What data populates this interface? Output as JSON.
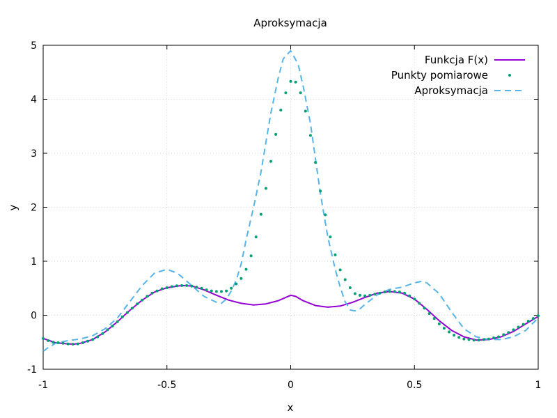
{
  "chart_data": {
    "type": "line",
    "title": "Aproksymacja",
    "xlabel": "x",
    "ylabel": "y",
    "xlim": [
      -1,
      1
    ],
    "ylim": [
      -1,
      5
    ],
    "xticks": [
      -1,
      -0.5,
      0,
      0.5,
      1
    ],
    "xtick_labels": [
      "-1",
      "-0.5",
      "0",
      "0.5",
      "1"
    ],
    "yticks": [
      -1,
      0,
      1,
      2,
      3,
      4,
      5
    ],
    "ytick_labels": [
      "-1",
      "0",
      "1",
      "2",
      "3",
      "4",
      "5"
    ],
    "grid": true,
    "legend_position": "top-right",
    "series": [
      {
        "name": "Funkcja F(x)",
        "style": "line",
        "color": "#9400d3",
        "x": [
          -1.0,
          -0.95,
          -0.9,
          -0.875,
          -0.85,
          -0.8,
          -0.75,
          -0.7,
          -0.65,
          -0.6,
          -0.55,
          -0.5,
          -0.45,
          -0.425,
          -0.4,
          -0.35,
          -0.3,
          -0.25,
          -0.2,
          -0.15,
          -0.1,
          -0.05,
          -0.02,
          0.0,
          0.02,
          0.05,
          0.1,
          0.15,
          0.2,
          0.25,
          0.3,
          0.35,
          0.4,
          0.45,
          0.5,
          0.55,
          0.6,
          0.65,
          0.7,
          0.75,
          0.8,
          0.85,
          0.9,
          0.95,
          1.0
        ],
        "y": [
          -0.43,
          -0.51,
          -0.53,
          -0.535,
          -0.52,
          -0.45,
          -0.31,
          -0.12,
          0.09,
          0.28,
          0.43,
          0.51,
          0.545,
          0.55,
          0.54,
          0.47,
          0.37,
          0.28,
          0.22,
          0.19,
          0.21,
          0.27,
          0.33,
          0.37,
          0.35,
          0.27,
          0.18,
          0.15,
          0.17,
          0.24,
          0.33,
          0.41,
          0.44,
          0.41,
          0.3,
          0.11,
          -0.1,
          -0.28,
          -0.4,
          -0.46,
          -0.45,
          -0.4,
          -0.3,
          -0.16,
          -0.02
        ]
      },
      {
        "name": "Punkty pomiarowe",
        "style": "points",
        "color": "#009e73",
        "x": [
          -1.0,
          -0.98,
          -0.96,
          -0.94,
          -0.92,
          -0.9,
          -0.88,
          -0.86,
          -0.84,
          -0.82,
          -0.8,
          -0.78,
          -0.76,
          -0.74,
          -0.72,
          -0.7,
          -0.68,
          -0.66,
          -0.64,
          -0.62,
          -0.6,
          -0.58,
          -0.56,
          -0.54,
          -0.52,
          -0.5,
          -0.48,
          -0.46,
          -0.44,
          -0.42,
          -0.4,
          -0.38,
          -0.36,
          -0.34,
          -0.32,
          -0.3,
          -0.28,
          -0.26,
          -0.24,
          -0.22,
          -0.2,
          -0.18,
          -0.16,
          -0.14,
          -0.12,
          -0.1,
          -0.08,
          -0.06,
          -0.04,
          -0.02,
          0.0,
          0.02,
          0.04,
          0.06,
          0.08,
          0.1,
          0.12,
          0.14,
          0.16,
          0.18,
          0.2,
          0.22,
          0.24,
          0.26,
          0.28,
          0.3,
          0.32,
          0.34,
          0.36,
          0.38,
          0.4,
          0.42,
          0.44,
          0.46,
          0.48,
          0.5,
          0.52,
          0.54,
          0.56,
          0.58,
          0.6,
          0.62,
          0.64,
          0.66,
          0.68,
          0.7,
          0.72,
          0.74,
          0.76,
          0.78,
          0.8,
          0.82,
          0.84,
          0.86,
          0.88,
          0.9,
          0.92,
          0.94,
          0.96,
          0.98,
          1.0
        ],
        "y": [
          -0.43,
          -0.47,
          -0.5,
          -0.51,
          -0.52,
          -0.53,
          -0.535,
          -0.53,
          -0.51,
          -0.48,
          -0.45,
          -0.4,
          -0.34,
          -0.27,
          -0.2,
          -0.12,
          -0.03,
          0.05,
          0.13,
          0.21,
          0.28,
          0.35,
          0.41,
          0.45,
          0.49,
          0.51,
          0.53,
          0.545,
          0.55,
          0.55,
          0.54,
          0.52,
          0.5,
          0.47,
          0.45,
          0.44,
          0.44,
          0.45,
          0.5,
          0.58,
          0.68,
          0.85,
          1.1,
          1.45,
          1.87,
          2.35,
          2.85,
          3.35,
          3.8,
          4.12,
          4.33,
          4.32,
          4.12,
          3.78,
          3.33,
          2.83,
          2.3,
          1.86,
          1.45,
          1.12,
          0.84,
          0.66,
          0.51,
          0.4,
          0.37,
          0.36,
          0.37,
          0.39,
          0.41,
          0.43,
          0.44,
          0.44,
          0.43,
          0.41,
          0.36,
          0.3,
          0.22,
          0.13,
          0.03,
          -0.06,
          -0.16,
          -0.24,
          -0.31,
          -0.37,
          -0.41,
          -0.44,
          -0.45,
          -0.46,
          -0.46,
          -0.45,
          -0.44,
          -0.42,
          -0.4,
          -0.36,
          -0.32,
          -0.27,
          -0.22,
          -0.17,
          -0.11,
          -0.06,
          -0.01
        ]
      },
      {
        "name": "Aproksymacja",
        "style": "dashed",
        "color": "#56b4e9",
        "x": [
          -1.0,
          -0.98,
          -0.95,
          -0.92,
          -0.9,
          -0.85,
          -0.8,
          -0.75,
          -0.7,
          -0.65,
          -0.6,
          -0.55,
          -0.5,
          -0.47,
          -0.45,
          -0.4,
          -0.35,
          -0.3,
          -0.28,
          -0.26,
          -0.24,
          -0.22,
          -0.2,
          -0.18,
          -0.15,
          -0.12,
          -0.1,
          -0.08,
          -0.05,
          -0.03,
          0.0,
          0.03,
          0.05,
          0.08,
          0.1,
          0.12,
          0.15,
          0.18,
          0.2,
          0.22,
          0.24,
          0.26,
          0.28,
          0.3,
          0.35,
          0.4,
          0.45,
          0.5,
          0.53,
          0.55,
          0.6,
          0.65,
          0.7,
          0.75,
          0.8,
          0.85,
          0.9,
          0.95,
          1.0
        ],
        "y": [
          -0.67,
          -0.6,
          -0.52,
          -0.49,
          -0.47,
          -0.44,
          -0.38,
          -0.25,
          -0.05,
          0.25,
          0.55,
          0.78,
          0.85,
          0.8,
          0.75,
          0.55,
          0.35,
          0.24,
          0.22,
          0.3,
          0.45,
          0.65,
          0.95,
          1.4,
          2.0,
          2.65,
          3.2,
          3.75,
          4.4,
          4.75,
          4.9,
          4.65,
          4.25,
          3.55,
          2.9,
          2.25,
          1.45,
          0.85,
          0.52,
          0.25,
          0.1,
          0.08,
          0.12,
          0.2,
          0.38,
          0.48,
          0.52,
          0.6,
          0.63,
          0.6,
          0.4,
          0.06,
          -0.25,
          -0.4,
          -0.45,
          -0.45,
          -0.4,
          -0.28,
          -0.05
        ]
      }
    ]
  }
}
